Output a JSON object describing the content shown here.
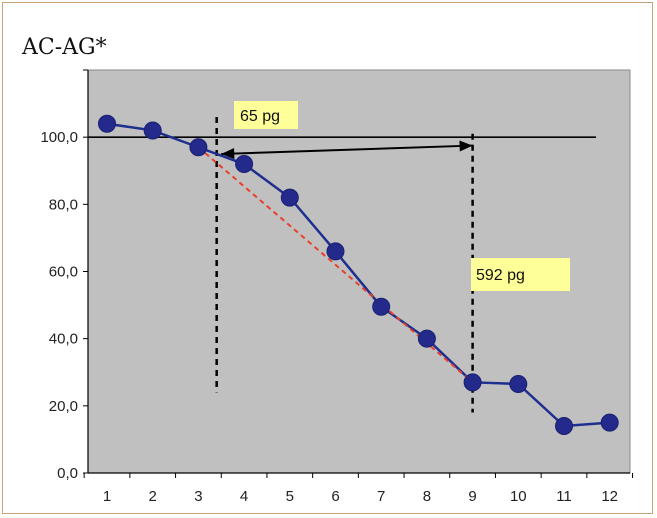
{
  "chart_data": {
    "type": "line",
    "title": "AC-AG*",
    "xlabel": "",
    "ylabel": "",
    "x": [
      1,
      2,
      3,
      4,
      5,
      6,
      7,
      8,
      9,
      10,
      11,
      12
    ],
    "categories": [
      "1",
      "2",
      "3",
      "4",
      "5",
      "6",
      "7",
      "8",
      "9",
      "10",
      "11",
      "12"
    ],
    "series": [
      {
        "values": [
          104,
          102,
          97,
          92,
          82,
          66,
          49.5,
          40,
          27,
          26.5,
          14,
          15
        ]
      }
    ],
    "ylim": [
      0,
      120
    ],
    "yticks": [
      "0,0",
      "20,0",
      "40,0",
      "60,0",
      "80,0",
      "100,0"
    ],
    "grid": false,
    "background": "#c0c0c0",
    "colors": {
      "series": "#1f2f8f",
      "marker": "#232a8c",
      "fit": "#e8402a",
      "reference": "#000000",
      "annotation_fill": "#ffff99"
    },
    "reference_line": {
      "y": 100
    },
    "fit_line": {
      "from": {
        "x": 3,
        "y": 97
      },
      "to": {
        "x": 9,
        "y": 27
      }
    },
    "vertical_markers": [
      {
        "x": 3.4,
        "from_y": 24,
        "to_y": 106
      },
      {
        "x": 9,
        "from_y": 18,
        "to_y": 101
      }
    ],
    "annotations": [
      {
        "label": "65 pg"
      },
      {
        "label": "592 pg"
      }
    ],
    "arrow": {
      "from": {
        "x": 3.5,
        "y": 95
      },
      "to": {
        "x": 9,
        "y": 97.5
      }
    }
  }
}
